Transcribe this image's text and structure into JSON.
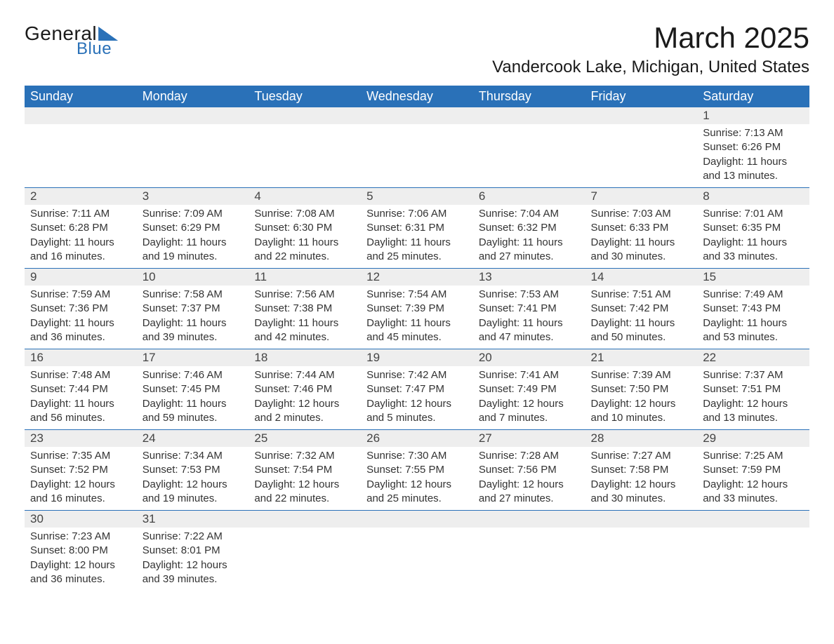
{
  "brand": {
    "word1": "General",
    "word2": "Blue",
    "accent_color": "#2a71b8"
  },
  "title": "March 2025",
  "location": "Vandercook Lake, Michigan, United States",
  "colors": {
    "header_bg": "#2a71b8",
    "header_text": "#ffffff",
    "daynum_bg": "#eeeeee",
    "text": "#333333",
    "rule": "#2a71b8",
    "page_bg": "#ffffff"
  },
  "layout": {
    "columns": 7,
    "week_rows": 6,
    "first_day_column_index": 6
  },
  "typography": {
    "title_fontsize": 42,
    "location_fontsize": 24,
    "weekday_fontsize": 18,
    "daynum_fontsize": 17,
    "body_fontsize": 15,
    "logo_fontsize": 28
  },
  "weekdays": [
    "Sunday",
    "Monday",
    "Tuesday",
    "Wednesday",
    "Thursday",
    "Friday",
    "Saturday"
  ],
  "days": [
    {
      "n": "1",
      "sunrise": "Sunrise: 7:13 AM",
      "sunset": "Sunset: 6:26 PM",
      "daylight1": "Daylight: 11 hours",
      "daylight2": "and 13 minutes."
    },
    {
      "n": "2",
      "sunrise": "Sunrise: 7:11 AM",
      "sunset": "Sunset: 6:28 PM",
      "daylight1": "Daylight: 11 hours",
      "daylight2": "and 16 minutes."
    },
    {
      "n": "3",
      "sunrise": "Sunrise: 7:09 AM",
      "sunset": "Sunset: 6:29 PM",
      "daylight1": "Daylight: 11 hours",
      "daylight2": "and 19 minutes."
    },
    {
      "n": "4",
      "sunrise": "Sunrise: 7:08 AM",
      "sunset": "Sunset: 6:30 PM",
      "daylight1": "Daylight: 11 hours",
      "daylight2": "and 22 minutes."
    },
    {
      "n": "5",
      "sunrise": "Sunrise: 7:06 AM",
      "sunset": "Sunset: 6:31 PM",
      "daylight1": "Daylight: 11 hours",
      "daylight2": "and 25 minutes."
    },
    {
      "n": "6",
      "sunrise": "Sunrise: 7:04 AM",
      "sunset": "Sunset: 6:32 PM",
      "daylight1": "Daylight: 11 hours",
      "daylight2": "and 27 minutes."
    },
    {
      "n": "7",
      "sunrise": "Sunrise: 7:03 AM",
      "sunset": "Sunset: 6:33 PM",
      "daylight1": "Daylight: 11 hours",
      "daylight2": "and 30 minutes."
    },
    {
      "n": "8",
      "sunrise": "Sunrise: 7:01 AM",
      "sunset": "Sunset: 6:35 PM",
      "daylight1": "Daylight: 11 hours",
      "daylight2": "and 33 minutes."
    },
    {
      "n": "9",
      "sunrise": "Sunrise: 7:59 AM",
      "sunset": "Sunset: 7:36 PM",
      "daylight1": "Daylight: 11 hours",
      "daylight2": "and 36 minutes."
    },
    {
      "n": "10",
      "sunrise": "Sunrise: 7:58 AM",
      "sunset": "Sunset: 7:37 PM",
      "daylight1": "Daylight: 11 hours",
      "daylight2": "and 39 minutes."
    },
    {
      "n": "11",
      "sunrise": "Sunrise: 7:56 AM",
      "sunset": "Sunset: 7:38 PM",
      "daylight1": "Daylight: 11 hours",
      "daylight2": "and 42 minutes."
    },
    {
      "n": "12",
      "sunrise": "Sunrise: 7:54 AM",
      "sunset": "Sunset: 7:39 PM",
      "daylight1": "Daylight: 11 hours",
      "daylight2": "and 45 minutes."
    },
    {
      "n": "13",
      "sunrise": "Sunrise: 7:53 AM",
      "sunset": "Sunset: 7:41 PM",
      "daylight1": "Daylight: 11 hours",
      "daylight2": "and 47 minutes."
    },
    {
      "n": "14",
      "sunrise": "Sunrise: 7:51 AM",
      "sunset": "Sunset: 7:42 PM",
      "daylight1": "Daylight: 11 hours",
      "daylight2": "and 50 minutes."
    },
    {
      "n": "15",
      "sunrise": "Sunrise: 7:49 AM",
      "sunset": "Sunset: 7:43 PM",
      "daylight1": "Daylight: 11 hours",
      "daylight2": "and 53 minutes."
    },
    {
      "n": "16",
      "sunrise": "Sunrise: 7:48 AM",
      "sunset": "Sunset: 7:44 PM",
      "daylight1": "Daylight: 11 hours",
      "daylight2": "and 56 minutes."
    },
    {
      "n": "17",
      "sunrise": "Sunrise: 7:46 AM",
      "sunset": "Sunset: 7:45 PM",
      "daylight1": "Daylight: 11 hours",
      "daylight2": "and 59 minutes."
    },
    {
      "n": "18",
      "sunrise": "Sunrise: 7:44 AM",
      "sunset": "Sunset: 7:46 PM",
      "daylight1": "Daylight: 12 hours",
      "daylight2": "and 2 minutes."
    },
    {
      "n": "19",
      "sunrise": "Sunrise: 7:42 AM",
      "sunset": "Sunset: 7:47 PM",
      "daylight1": "Daylight: 12 hours",
      "daylight2": "and 5 minutes."
    },
    {
      "n": "20",
      "sunrise": "Sunrise: 7:41 AM",
      "sunset": "Sunset: 7:49 PM",
      "daylight1": "Daylight: 12 hours",
      "daylight2": "and 7 minutes."
    },
    {
      "n": "21",
      "sunrise": "Sunrise: 7:39 AM",
      "sunset": "Sunset: 7:50 PM",
      "daylight1": "Daylight: 12 hours",
      "daylight2": "and 10 minutes."
    },
    {
      "n": "22",
      "sunrise": "Sunrise: 7:37 AM",
      "sunset": "Sunset: 7:51 PM",
      "daylight1": "Daylight: 12 hours",
      "daylight2": "and 13 minutes."
    },
    {
      "n": "23",
      "sunrise": "Sunrise: 7:35 AM",
      "sunset": "Sunset: 7:52 PM",
      "daylight1": "Daylight: 12 hours",
      "daylight2": "and 16 minutes."
    },
    {
      "n": "24",
      "sunrise": "Sunrise: 7:34 AM",
      "sunset": "Sunset: 7:53 PM",
      "daylight1": "Daylight: 12 hours",
      "daylight2": "and 19 minutes."
    },
    {
      "n": "25",
      "sunrise": "Sunrise: 7:32 AM",
      "sunset": "Sunset: 7:54 PM",
      "daylight1": "Daylight: 12 hours",
      "daylight2": "and 22 minutes."
    },
    {
      "n": "26",
      "sunrise": "Sunrise: 7:30 AM",
      "sunset": "Sunset: 7:55 PM",
      "daylight1": "Daylight: 12 hours",
      "daylight2": "and 25 minutes."
    },
    {
      "n": "27",
      "sunrise": "Sunrise: 7:28 AM",
      "sunset": "Sunset: 7:56 PM",
      "daylight1": "Daylight: 12 hours",
      "daylight2": "and 27 minutes."
    },
    {
      "n": "28",
      "sunrise": "Sunrise: 7:27 AM",
      "sunset": "Sunset: 7:58 PM",
      "daylight1": "Daylight: 12 hours",
      "daylight2": "and 30 minutes."
    },
    {
      "n": "29",
      "sunrise": "Sunrise: 7:25 AM",
      "sunset": "Sunset: 7:59 PM",
      "daylight1": "Daylight: 12 hours",
      "daylight2": "and 33 minutes."
    },
    {
      "n": "30",
      "sunrise": "Sunrise: 7:23 AM",
      "sunset": "Sunset: 8:00 PM",
      "daylight1": "Daylight: 12 hours",
      "daylight2": "and 36 minutes."
    },
    {
      "n": "31",
      "sunrise": "Sunrise: 7:22 AM",
      "sunset": "Sunset: 8:01 PM",
      "daylight1": "Daylight: 12 hours",
      "daylight2": "and 39 minutes."
    }
  ]
}
